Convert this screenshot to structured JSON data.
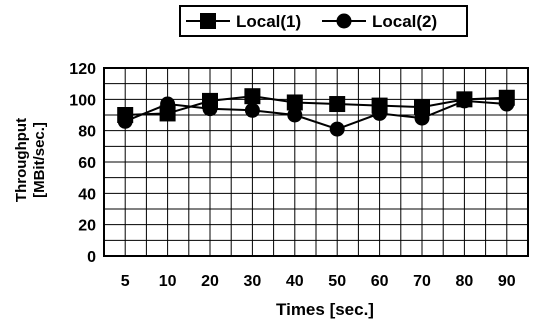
{
  "chart_data": {
    "type": "line",
    "title": "",
    "xlabel": "Times [sec.]",
    "ylabel_lines": [
      "Throughput",
      "[MBit/sec.]"
    ],
    "categories": [
      "5",
      "10",
      "20",
      "30",
      "40",
      "50",
      "60",
      "70",
      "80",
      "90"
    ],
    "ylim": [
      0,
      120
    ],
    "yticks": [
      "0",
      "20",
      "40",
      "60",
      "80",
      "100",
      "120"
    ],
    "grid": true,
    "legend_position": "top-center",
    "series": [
      {
        "name": "Local(1)",
        "marker": "square",
        "values": [
          90,
          91,
          99,
          102,
          98,
          97,
          96,
          95,
          100,
          101
        ]
      },
      {
        "name": "Local(2)",
        "marker": "circle",
        "values": [
          86,
          97,
          94,
          93,
          90,
          81,
          91,
          88,
          99,
          97
        ]
      }
    ],
    "colors": {
      "line": "#000000",
      "grid": "#000000",
      "background": "#ffffff"
    }
  }
}
